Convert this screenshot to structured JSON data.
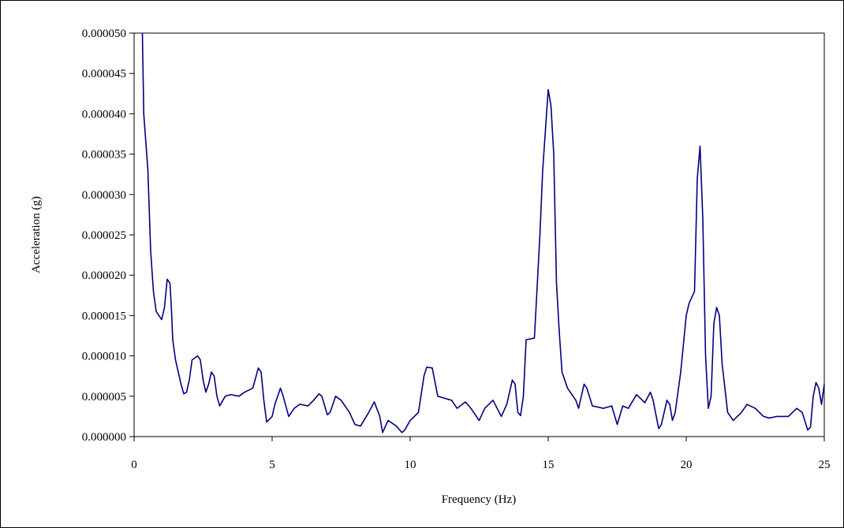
{
  "chart_data": {
    "type": "line",
    "x_label": "Frequency (Hz)",
    "y_label": "Acceleration (g)",
    "xlim": [
      0,
      25
    ],
    "xticks": [
      0,
      5,
      10,
      15,
      20,
      25
    ],
    "ylim": [
      0,
      5e-05
    ],
    "yticks": [
      {
        "value": 0,
        "label": "0.000000"
      },
      {
        "value": 5e-06,
        "label": "0.000005"
      },
      {
        "value": 1e-05,
        "label": "0.000010"
      },
      {
        "value": 1.5e-05,
        "label": "0.000015"
      },
      {
        "value": 2e-05,
        "label": "0.000020"
      },
      {
        "value": 2.5e-05,
        "label": "0.000025"
      },
      {
        "value": 3e-05,
        "label": "0.000030"
      },
      {
        "value": 3.5e-05,
        "label": "0.000035"
      },
      {
        "value": 4e-05,
        "label": "0.000040"
      },
      {
        "value": 4.5e-05,
        "label": "0.000045"
      },
      {
        "value": 5e-05,
        "label": "0.000050"
      }
    ],
    "grid": false,
    "color": "#000080",
    "x": [
      0.3,
      0.35,
      0.5,
      0.6,
      0.7,
      0.8,
      1.0,
      1.1,
      1.2,
      1.3,
      1.35,
      1.4,
      1.5,
      1.7,
      1.8,
      1.9,
      2.0,
      2.1,
      2.3,
      2.4,
      2.5,
      2.6,
      2.7,
      2.8,
      2.9,
      3.0,
      3.1,
      3.3,
      3.5,
      3.8,
      4.0,
      4.3,
      4.5,
      4.6,
      4.7,
      4.8,
      5.0,
      5.1,
      5.3,
      5.4,
      5.6,
      5.8,
      6.0,
      6.3,
      6.5,
      6.7,
      6.8,
      7.0,
      7.1,
      7.3,
      7.5,
      7.8,
      8.0,
      8.2,
      8.5,
      8.7,
      8.9,
      9.0,
      9.2,
      9.5,
      9.7,
      9.8,
      10.0,
      10.3,
      10.5,
      10.6,
      10.8,
      11.0,
      11.2,
      11.5,
      11.7,
      12.0,
      12.2,
      12.5,
      12.7,
      13.0,
      13.3,
      13.5,
      13.7,
      13.8,
      13.9,
      14.0,
      14.1,
      14.2,
      14.5,
      14.7,
      14.8,
      15.0,
      15.1,
      15.2,
      15.3,
      15.4,
      15.5,
      15.7,
      16.0,
      16.1,
      16.2,
      16.3,
      16.4,
      16.6,
      17.0,
      17.3,
      17.5,
      17.7,
      17.9,
      18.2,
      18.5,
      18.7,
      18.8,
      19.0,
      19.1,
      19.3,
      19.4,
      19.5,
      19.6,
      19.8,
      20.0,
      20.1,
      20.3,
      20.4,
      20.5,
      20.6,
      20.7,
      20.8,
      20.9,
      21.0,
      21.1,
      21.2,
      21.3,
      21.5,
      21.7,
      22.0,
      22.2,
      22.5,
      22.8,
      23.0,
      23.3,
      23.7,
      24.0,
      24.2,
      24.4,
      24.5,
      24.6,
      24.7,
      24.8,
      24.9,
      25.0
    ],
    "values": [
      5e-05,
      4e-05,
      3.3e-05,
      2.3e-05,
      1.8e-05,
      1.55e-05,
      1.45e-05,
      1.6e-05,
      1.95e-05,
      1.9e-05,
      1.6e-05,
      1.2e-05,
      9.5e-06,
      6.5e-06,
      5.3e-06,
      5.5e-06,
      7e-06,
      9.5e-06,
      1e-05,
      9.5e-06,
      7e-06,
      5.5e-06,
      6.5e-06,
      8e-06,
      7.5e-06,
      5e-06,
      3.8e-06,
      5e-06,
      5.2e-06,
      5e-06,
      5.5e-06,
      6e-06,
      8.5e-06,
      8e-06,
      4.5e-06,
      1.8e-06,
      2.5e-06,
      4e-06,
      6e-06,
      5e-06,
      2.5e-06,
      3.5e-06,
      4e-06,
      3.8e-06,
      4.5e-06,
      5.3e-06,
      5e-06,
      2.7e-06,
      3e-06,
      5e-06,
      4.5e-06,
      3e-06,
      1.5e-06,
      1.3e-06,
      3e-06,
      4.3e-06,
      2.5e-06,
      5e-07,
      2e-06,
      1.3e-06,
      5e-07,
      8e-07,
      2e-06,
      3e-06,
      7.5e-06,
      8.6e-06,
      8.5e-06,
      5e-06,
      4.8e-06,
      4.5e-06,
      3.5e-06,
      4.3e-06,
      3.5e-06,
      2e-06,
      3.5e-06,
      4.5e-06,
      2.5e-06,
      4e-06,
      7e-06,
      6.5e-06,
      3e-06,
      2.6e-06,
      5e-06,
      1.2e-05,
      1.22e-05,
      2.5e-05,
      3.3e-05,
      4.3e-05,
      4.1e-05,
      3.5e-05,
      1.9e-05,
      1.3e-05,
      8e-06,
      6e-06,
      4.5e-06,
      3.5e-06,
      5e-06,
      6.5e-06,
      6e-06,
      3.8e-06,
      3.5e-06,
      3.8e-06,
      1.5e-06,
      3.8e-06,
      3.5e-06,
      5.2e-06,
      4.2e-06,
      5.5e-06,
      4.5e-06,
      1e-06,
      1.5e-06,
      4.5e-06,
      4e-06,
      2e-06,
      3e-06,
      8e-06,
      1.5e-05,
      1.65e-05,
      1.8e-05,
      3.2e-05,
      3.6e-05,
      2.7e-05,
      1e-05,
      3.5e-06,
      5e-06,
      1.4e-05,
      1.6e-05,
      1.5e-05,
      9e-06,
      3e-06,
      2e-06,
      3e-06,
      4e-06,
      3.5e-06,
      2.5e-06,
      2.3e-06,
      2.5e-06,
      2.5e-06,
      3.5e-06,
      3e-06,
      8e-07,
      1.2e-06,
      5e-06,
      6.7e-06,
      6e-06,
      4e-06,
      6.5e-06
    ]
  }
}
